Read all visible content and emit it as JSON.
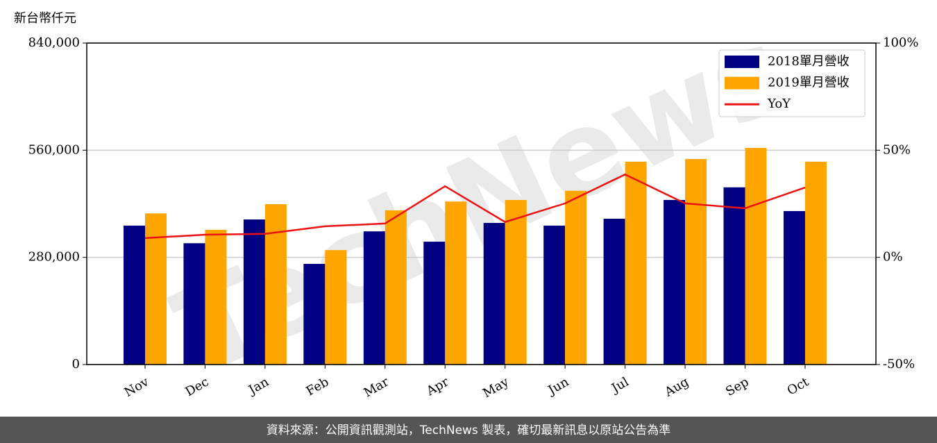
{
  "chart_data": {
    "type": "bar",
    "y_axis_label": "新台幣仟元",
    "watermark": "TechNews",
    "footer": "資料來源：公開資訊觀測站，TechNews 製表，確切最新訊息以原站公告為準",
    "categories": [
      "Nov",
      "Dec",
      "Jan",
      "Feb",
      "Mar",
      "Apr",
      "May",
      "Jun",
      "Jul",
      "Aug",
      "Sep",
      "Oct"
    ],
    "series": [
      {
        "name": "2018單月營收",
        "color": "#000080",
        "values": [
          363000,
          317000,
          379000,
          263000,
          348000,
          321000,
          370000,
          363000,
          381000,
          430000,
          463000,
          401000
        ]
      },
      {
        "name": "2019單月營收",
        "color": "#ffa500",
        "values": [
          395000,
          352000,
          419000,
          299000,
          403000,
          426000,
          430000,
          454000,
          530000,
          537000,
          566000,
          530000
        ]
      },
      {
        "name": "YoY",
        "color": "#ee1111",
        "type": "line",
        "axis": "y2",
        "values": [
          9.0,
          10.6,
          11.0,
          14.5,
          15.8,
          33.2,
          16.5,
          25.2,
          38.7,
          25.2,
          22.9,
          32.6
        ]
      }
    ],
    "ylim": [
      0,
      840000
    ],
    "yticks": [
      {
        "value": 0,
        "label": "0"
      },
      {
        "value": 280000,
        "label": "280,000"
      },
      {
        "value": 560000,
        "label": "560,000"
      },
      {
        "value": 840000,
        "label": "840,000"
      }
    ],
    "y2lim": [
      -50,
      100
    ],
    "y2ticks": [
      {
        "value": -50,
        "label": "-50%"
      },
      {
        "value": 0,
        "label": "0%"
      },
      {
        "value": 50,
        "label": "50%"
      },
      {
        "value": 100,
        "label": "100%"
      }
    ],
    "grid": true,
    "legend": "upper right"
  }
}
